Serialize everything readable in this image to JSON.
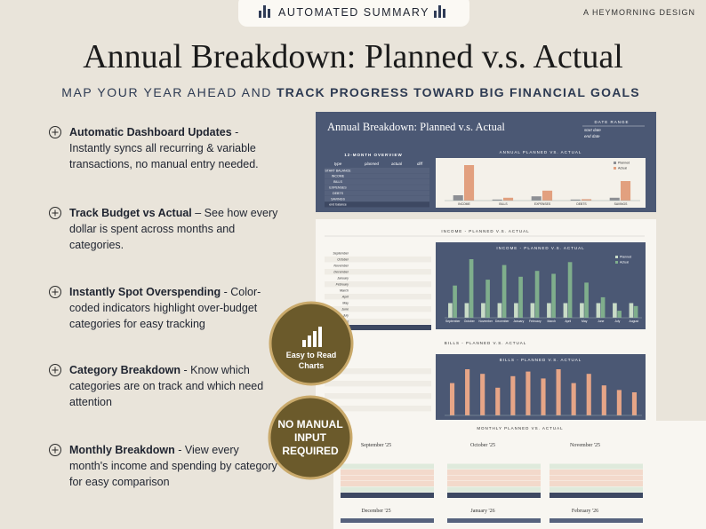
{
  "header": {
    "badge": "AUTOMATED SUMMARY",
    "brand": "A HEYMORNING DESIGN",
    "title": "Annual Breakdown:  Planned v.s. Actual",
    "subtitle_regular": "MAP YOUR YEAR AHEAD AND",
    "subtitle_bold": "TRACK PROGRESS TOWARD BIG FINANCIAL GOALS"
  },
  "features": [
    {
      "title": "Automatic Dashboard Updates",
      "text": " - Instantly syncs all recurring & variable transactions, no manual entry needed."
    },
    {
      "title": "Track Budget vs Actual",
      "text": " – See how every dollar is spent across months and categories."
    },
    {
      "title": "Instantly Spot Overspending",
      "text": " - Color-coded indicators highlight over-budget categories for easy tracking"
    },
    {
      "title": "Category Breakdown",
      "text": " - Know which categories are on track and which need attention"
    },
    {
      "title": "Monthly Breakdown",
      "text": " - View every month's income and spending by category for easy comparison"
    }
  ],
  "badges": [
    "Easy to Read Charts",
    "NO MANUAL INPUT REQUIRED"
  ],
  "mockup": {
    "sheet_title": "Annual Breakdown: Planned v.s. Actual",
    "date_range": "DATE RANGE",
    "start_date": "start date",
    "end_date": "end date",
    "overview": {
      "title": "12-MONTH OVERVIEW",
      "columns": [
        "type",
        "planned",
        "actual",
        "diff"
      ],
      "rows": [
        "START BALANCE",
        "INCOME",
        "BILLS",
        "EXPENSES",
        "DEBTS",
        "SAVINGS",
        "end balance"
      ]
    },
    "annual_chart": {
      "type": "bar",
      "title": "ANNUAL PLANNED VS. ACTUAL",
      "categories": [
        "INCOME",
        "BILLS",
        "EXPENSES",
        "DEBTS",
        "SAVINGS"
      ],
      "ylim": [
        0,
        100
      ],
      "series": [
        {
          "name": "Planned",
          "color": "#8d8f94",
          "values": [
            15,
            3,
            12,
            3,
            8
          ]
        },
        {
          "name": "Actual",
          "color": "#e2a07f",
          "values": [
            100,
            8,
            28,
            4,
            55
          ]
        }
      ]
    },
    "income_label": "INCOME - PLANNED V.S. ACTUAL",
    "income_chart": {
      "type": "bar",
      "title": "INCOME - PLANNED V.S. ACTUAL",
      "categories": [
        "September",
        "October",
        "November",
        "December",
        "January",
        "February",
        "March",
        "April",
        "May",
        "June",
        "July",
        "August"
      ],
      "ylim": [
        0,
        100
      ],
      "series": [
        {
          "name": "Planned",
          "color": "#c9dcc7",
          "values": [
            25,
            25,
            25,
            25,
            25,
            25,
            25,
            25,
            25,
            25,
            25,
            25
          ]
        },
        {
          "name": "Actual",
          "color": "#7fae8c",
          "values": [
            55,
            100,
            65,
            90,
            70,
            80,
            75,
            95,
            60,
            35,
            12,
            20
          ]
        }
      ]
    },
    "bills_label": "BILLS - PLANNED V.S. ACTUAL",
    "bills_chart": {
      "type": "bar",
      "title": "BILLS - PLANNED V.S. ACTUAL",
      "ylim": [
        0,
        100
      ],
      "color": "#e6a587",
      "values": [
        70,
        100,
        90,
        60,
        85,
        95,
        80,
        100,
        70,
        90,
        65,
        55,
        50
      ]
    },
    "monthly_label": "MONTHLY PLANNED VS. ACTUAL",
    "months": [
      "September '25",
      "October '25",
      "November '25",
      "December '25",
      "January '26",
      "February '26"
    ]
  }
}
